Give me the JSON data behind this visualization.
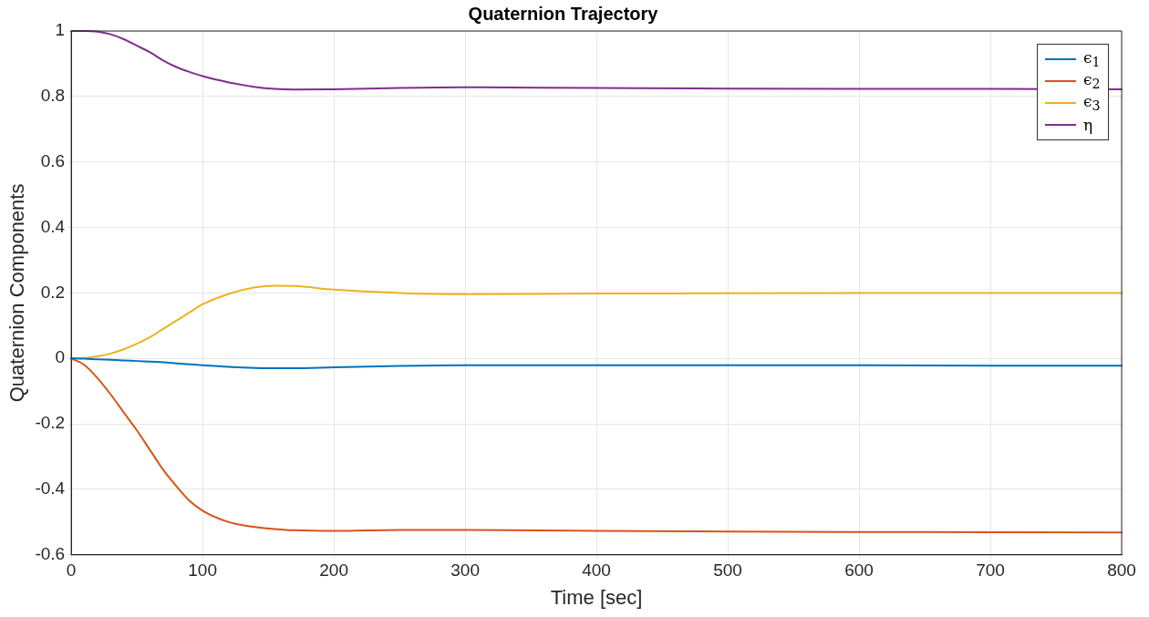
{
  "chart_data": {
    "type": "line",
    "title": "Quaternion Trajectory",
    "xlabel": "Time [sec]",
    "ylabel": "Quaternion Components",
    "x": [
      0,
      10,
      20,
      30,
      40,
      50,
      60,
      70,
      80,
      90,
      100,
      120,
      140,
      155,
      170,
      200,
      250,
      300,
      400,
      500,
      600,
      700,
      800
    ],
    "series": [
      {
        "name": "ϵ$_{1}$",
        "color": "#0072bd",
        "values": [
          0,
          -0.001,
          -0.003,
          -0.004,
          -0.006,
          -0.008,
          -0.01,
          -0.012,
          -0.015,
          -0.018,
          -0.021,
          -0.026,
          -0.029,
          -0.03,
          -0.03,
          -0.027,
          -0.023,
          -0.021,
          -0.021,
          -0.021,
          -0.021,
          -0.022,
          -0.022
        ]
      },
      {
        "name": "ϵ$_{2}$",
        "color": "#d95319",
        "values": [
          0,
          -0.02,
          -0.06,
          -0.11,
          -0.165,
          -0.22,
          -0.28,
          -0.34,
          -0.39,
          -0.435,
          -0.465,
          -0.5,
          -0.515,
          -0.521,
          -0.525,
          -0.527,
          -0.524,
          -0.524,
          -0.527,
          -0.529,
          -0.53,
          -0.531,
          -0.532
        ]
      },
      {
        "name": "ϵ$_{3}$",
        "color": "#edb120",
        "values": [
          0,
          0.001,
          0.006,
          0.015,
          0.028,
          0.045,
          0.065,
          0.09,
          0.115,
          0.14,
          0.165,
          0.197,
          0.217,
          0.222,
          0.221,
          0.21,
          0.2,
          0.196,
          0.198,
          0.199,
          0.2,
          0.2,
          0.2
        ]
      },
      {
        "name": "η",
        "color": "#7e2f8e",
        "values": [
          1,
          1,
          0.998,
          0.99,
          0.975,
          0.955,
          0.935,
          0.91,
          0.89,
          0.875,
          0.862,
          0.843,
          0.829,
          0.823,
          0.821,
          0.822,
          0.826,
          0.828,
          0.826,
          0.824,
          0.823,
          0.823,
          0.822
        ]
      }
    ],
    "xlim": [
      0,
      800
    ],
    "xticks": [
      0,
      100,
      200,
      300,
      400,
      500,
      600,
      700,
      800
    ],
    "ylim": [
      -0.6,
      1
    ],
    "yticks": [
      -0.6,
      -0.4,
      -0.2,
      0,
      0.2,
      0.4,
      0.6,
      0.8,
      1
    ],
    "grid": true,
    "legend": "top right",
    "marker": "none",
    "line_style": "solid"
  }
}
